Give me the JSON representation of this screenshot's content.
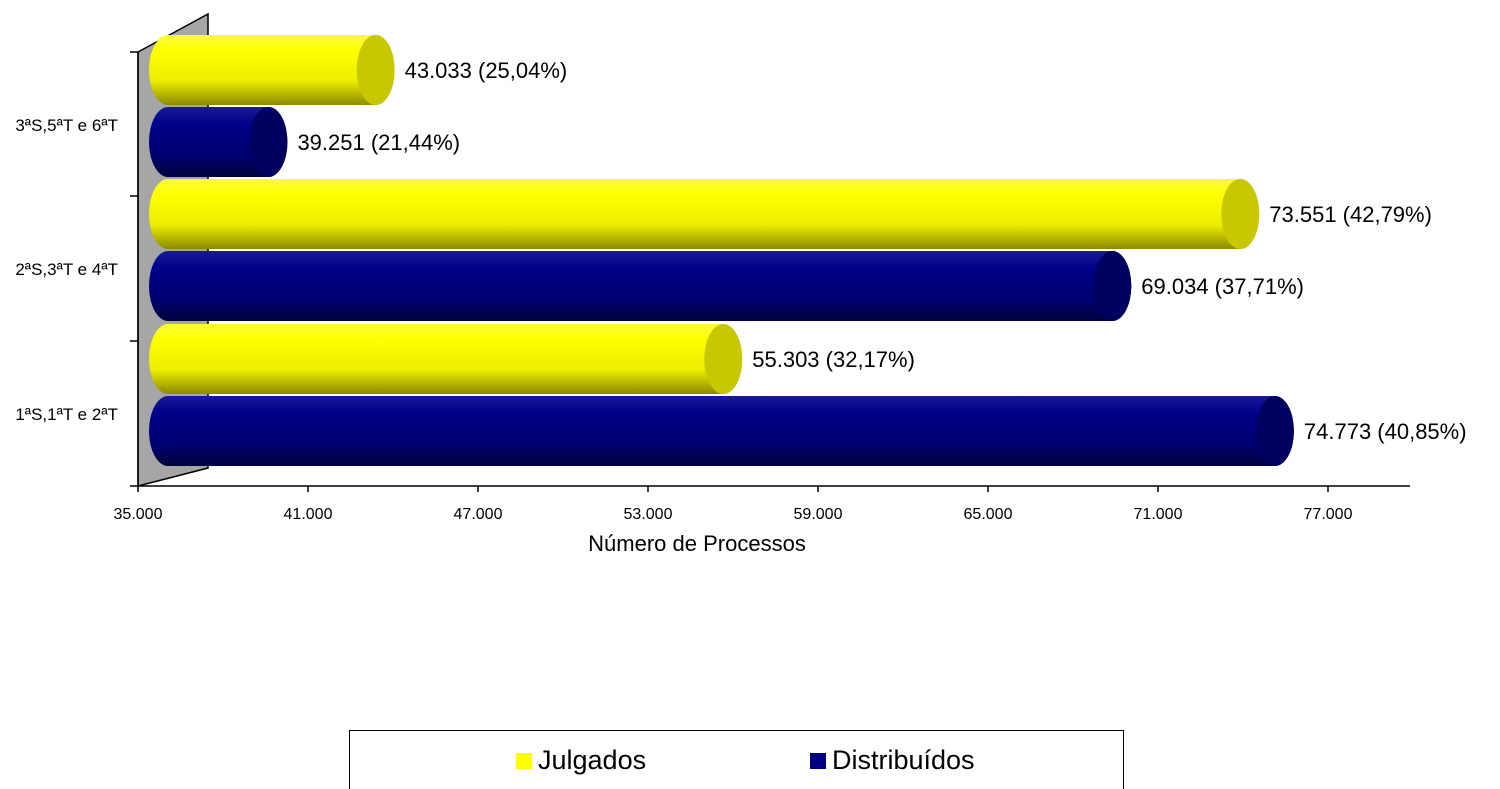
{
  "chart_data": {
    "type": "bar",
    "orientation": "horizontal",
    "style": "3d-cylinder",
    "xlabel": "Número de Processos",
    "xlim": [
      35000,
      80000
    ],
    "xticks": [
      "35.000",
      "41.000",
      "47.000",
      "53.000",
      "59.000",
      "65.000",
      "71.000",
      "77.000"
    ],
    "xtick_values": [
      35000,
      41000,
      47000,
      53000,
      59000,
      65000,
      71000,
      77000
    ],
    "categories": [
      "1ªS,1ªT e 2ªT",
      "2ªS,3ªT e 4ªT",
      "3ªS,5ªT e 6ªT"
    ],
    "series": [
      {
        "name": "Julgados",
        "color": "#FFFF00",
        "values": [
          55303,
          73551,
          43033
        ],
        "labels": [
          "55.303 (32,17%)",
          "73.551 (42,79%)",
          "43.033 (25,04%)"
        ]
      },
      {
        "name": "Distribuídos",
        "color": "#000080",
        "values": [
          74773,
          69034,
          39251
        ],
        "labels": [
          "74.773 (40,85%)",
          "69.034 (37,71%)",
          "39.251 (21,44%)"
        ]
      }
    ],
    "legend_position": "bottom",
    "grid": false
  }
}
